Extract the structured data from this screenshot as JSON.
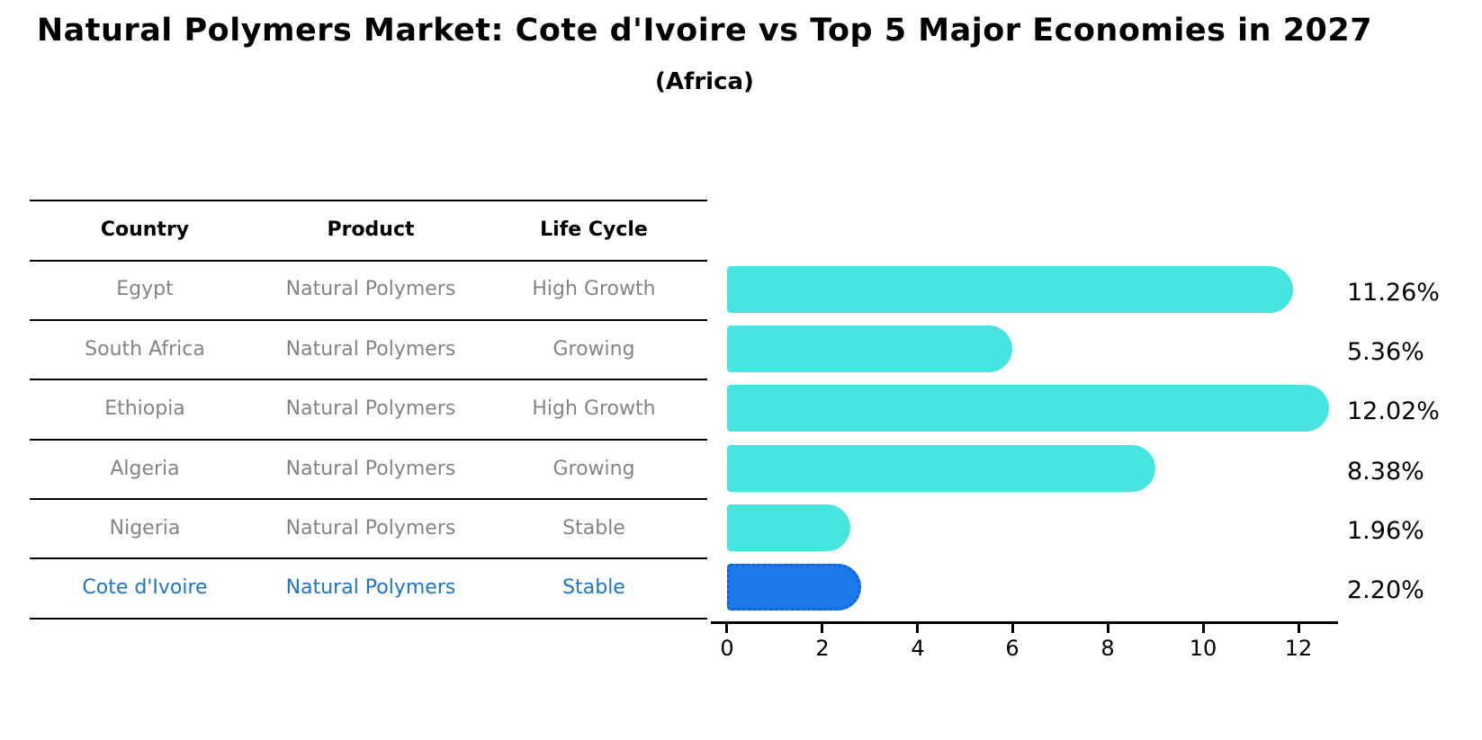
{
  "title": "Natural Polymers Market: Cote d'Ivoire vs Top 5 Major Economies in 2027",
  "subtitle": "(Africa)",
  "table": {
    "headers": [
      "Country",
      "Product",
      "Life Cycle"
    ],
    "rows": [
      {
        "country": "Egypt",
        "product": "Natural Polymers",
        "life_cycle": "High Growth",
        "highlight": false
      },
      {
        "country": "South Africa",
        "product": "Natural Polymers",
        "life_cycle": "Growing",
        "highlight": false
      },
      {
        "country": "Ethiopia",
        "product": "Natural Polymers",
        "life_cycle": "High Growth",
        "highlight": false
      },
      {
        "country": "Algeria",
        "product": "Natural Polymers",
        "life_cycle": "Growing",
        "highlight": false
      },
      {
        "country": "Nigeria",
        "product": "Natural Polymers",
        "life_cycle": "Stable",
        "highlight": false
      },
      {
        "country": "Cote d'Ivoire",
        "product": "Natural Polymers",
        "life_cycle": "Stable",
        "highlight": true
      }
    ]
  },
  "chart_data": {
    "type": "bar",
    "orientation": "horizontal",
    "title": "Natural Polymers Market: Cote d'Ivoire vs Top 5 Major Economies in 2027 (Africa)",
    "categories": [
      "Egypt",
      "South Africa",
      "Ethiopia",
      "Algeria",
      "Nigeria",
      "Cote d'Ivoire"
    ],
    "values": [
      11.26,
      5.36,
      12.02,
      8.38,
      1.96,
      2.2
    ],
    "value_labels": [
      "11.26%",
      "5.36%",
      "12.02%",
      "8.38%",
      "1.96%",
      "2.20%"
    ],
    "xlabel": "",
    "ylabel": "",
    "xlim": [
      0,
      13
    ],
    "x_ticks": [
      0,
      2,
      4,
      6,
      8,
      10,
      12
    ],
    "grid": false,
    "legend": false,
    "highlight_index": 5
  },
  "axis": {
    "tick_labels": [
      "0",
      "2",
      "4",
      "6",
      "8",
      "10",
      "12"
    ]
  },
  "colors": {
    "bar_cyan": "#48E5E0",
    "bar_blue": "#1B7AE8",
    "bar_blue_border": "#0B62DC",
    "highlight_text": "#1E74C8",
    "row_text": "#848484",
    "header_text": "#000000"
  }
}
